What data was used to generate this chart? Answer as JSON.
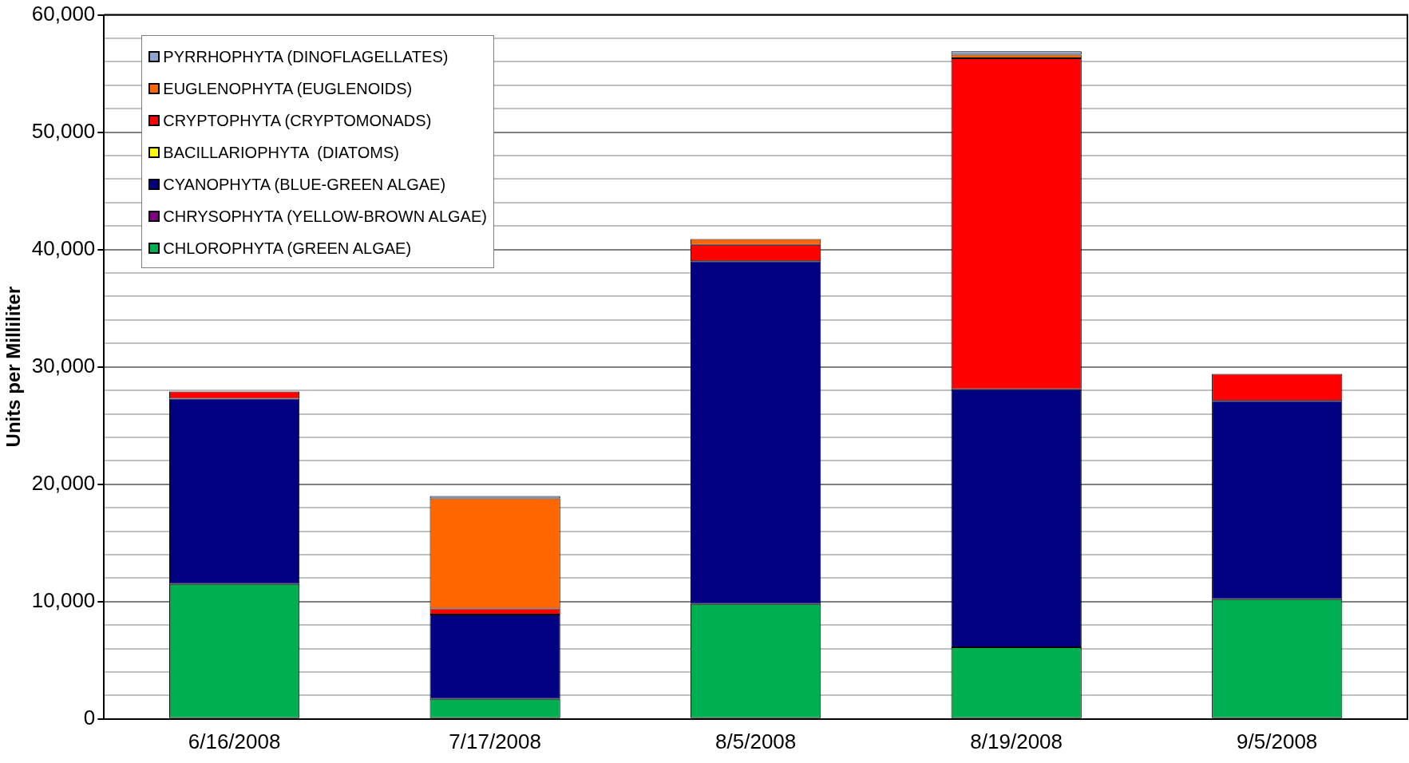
{
  "chart_data": {
    "type": "bar",
    "stacked": true,
    "ylabel": "Units per Milliliter",
    "categories": [
      "6/16/2008",
      "7/17/2008",
      "8/5/2008",
      "8/19/2008",
      "9/5/2008"
    ],
    "series": [
      {
        "name": "CHLOROPHYTA (GREEN ALGAE)",
        "color": "#00b050",
        "values": [
          11500,
          1700,
          9800,
          6100,
          10200
        ]
      },
      {
        "name": "CHRYSOPHYTA (YELLOW-BROWN ALGAE)",
        "color": "#800080",
        "values": [
          0,
          0,
          0,
          0,
          0
        ]
      },
      {
        "name": "CYANOPHYTA (BLUE-GREEN ALGAE)",
        "color": "#000080",
        "values": [
          15800,
          7200,
          29200,
          22000,
          16900
        ]
      },
      {
        "name": "BACILLARIOPHYTA  (DIATOMS)",
        "color": "#ffff00",
        "values": [
          0,
          0,
          0,
          0,
          0
        ]
      },
      {
        "name": "CRYPTOPHYTA (CRYPTOMONADS)",
        "color": "#ff0000",
        "values": [
          600,
          500,
          1400,
          28200,
          2300
        ]
      },
      {
        "name": "EUGLENOPHYTA (EUGLENOIDS)",
        "color": "#ff6600",
        "values": [
          0,
          9400,
          500,
          300,
          0
        ]
      },
      {
        "name": "PYRRHOPHYTA (DINOFLAGELLATES)",
        "color": "#8fa4cc",
        "values": [
          0,
          200,
          0,
          300,
          0
        ]
      }
    ],
    "ylim": [
      0,
      60000
    ],
    "yticks": [
      0,
      {
        "value": 2000,
        "label": null
      },
      {
        "value": 4000,
        "label": null
      },
      {
        "value": 6000,
        "label": null
      },
      {
        "value": 8000,
        "label": null
      },
      {
        "value": 10000,
        "label": "10,000"
      },
      {
        "value": 12000,
        "label": null
      },
      {
        "value": 14000,
        "label": null
      },
      {
        "value": 16000,
        "label": null
      },
      {
        "value": 18000,
        "label": null
      },
      {
        "value": 20000,
        "label": "20,000"
      },
      {
        "value": 22000,
        "label": null
      },
      {
        "value": 24000,
        "label": null
      },
      {
        "value": 26000,
        "label": null
      },
      {
        "value": 28000,
        "label": null
      },
      {
        "value": 30000,
        "label": "30,000"
      },
      {
        "value": 32000,
        "label": null
      },
      {
        "value": 34000,
        "label": null
      },
      {
        "value": 36000,
        "label": null
      },
      {
        "value": 38000,
        "label": null
      },
      {
        "value": 40000,
        "label": "40,000"
      },
      {
        "value": 42000,
        "label": null
      },
      {
        "value": 44000,
        "label": null
      },
      {
        "value": 46000,
        "label": null
      },
      {
        "value": 48000,
        "label": null
      },
      {
        "value": 50000,
        "label": "50,000"
      },
      {
        "value": 52000,
        "label": null
      },
      {
        "value": 54000,
        "label": null
      },
      {
        "value": 56000,
        "label": null
      },
      {
        "value": 58000,
        "label": null
      },
      {
        "value": 60000,
        "label": "60,000"
      }
    ],
    "grid": "y",
    "legend": "top left"
  }
}
